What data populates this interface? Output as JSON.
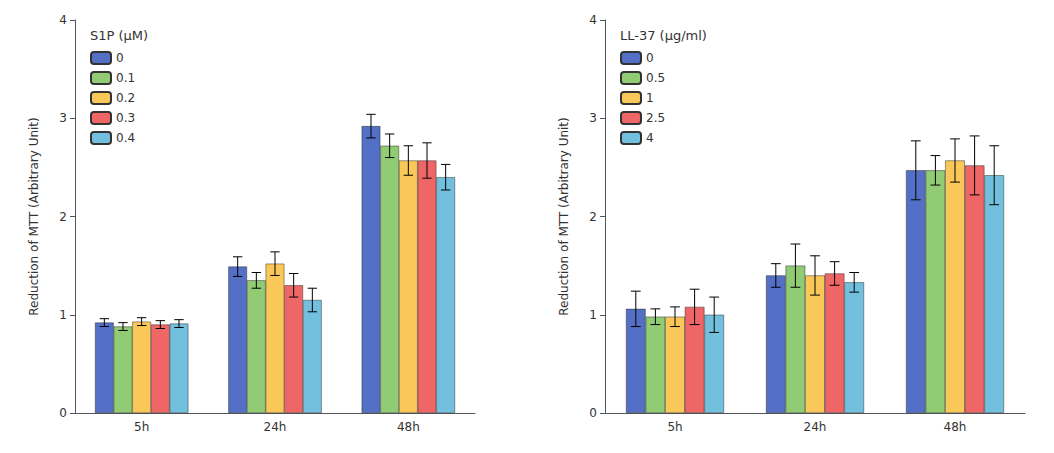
{
  "chart_data": [
    {
      "type": "bar",
      "title": "S1P (μM)",
      "ylabel": "Reduction of MTT (Arbitrary Unit)",
      "categories": [
        "5h",
        "24h",
        "48h"
      ],
      "series": [
        {
          "name": "0",
          "color": "#5470c6",
          "values": [
            0.92,
            1.49,
            2.92
          ],
          "errors": [
            0.04,
            0.1,
            0.12
          ]
        },
        {
          "name": "0.1",
          "color": "#91cc75",
          "values": [
            0.88,
            1.35,
            2.72
          ],
          "errors": [
            0.04,
            0.08,
            0.12
          ]
        },
        {
          "name": "0.2",
          "color": "#fac858",
          "values": [
            0.93,
            1.52,
            2.57
          ],
          "errors": [
            0.04,
            0.12,
            0.15
          ]
        },
        {
          "name": "0.3",
          "color": "#ee6666",
          "values": [
            0.9,
            1.3,
            2.57
          ],
          "errors": [
            0.04,
            0.12,
            0.18
          ]
        },
        {
          "name": "0.4",
          "color": "#73c0de",
          "values": [
            0.91,
            1.15,
            2.4
          ],
          "errors": [
            0.04,
            0.12,
            0.13
          ]
        }
      ],
      "ylim": [
        0,
        4
      ],
      "yticks": [
        0,
        1,
        2,
        3,
        4
      ],
      "grid": false,
      "legend": "upper left"
    },
    {
      "type": "bar",
      "title": "LL-37 (μg/ml)",
      "ylabel": "Reduction of MTT (Arbitrary Unit)",
      "categories": [
        "5h",
        "24h",
        "48h"
      ],
      "series": [
        {
          "name": "0",
          "color": "#5470c6",
          "values": [
            1.06,
            1.4,
            2.47
          ],
          "errors": [
            0.18,
            0.12,
            0.3
          ]
        },
        {
          "name": "0.5",
          "color": "#91cc75",
          "values": [
            0.98,
            1.5,
            2.47
          ],
          "errors": [
            0.08,
            0.22,
            0.15
          ]
        },
        {
          "name": "1",
          "color": "#fac858",
          "values": [
            0.98,
            1.4,
            2.57
          ],
          "errors": [
            0.1,
            0.2,
            0.22
          ]
        },
        {
          "name": "2.5",
          "color": "#ee6666",
          "values": [
            1.08,
            1.42,
            2.52
          ],
          "errors": [
            0.18,
            0.12,
            0.3
          ]
        },
        {
          "name": "4",
          "color": "#73c0de",
          "values": [
            1.0,
            1.33,
            2.42
          ],
          "errors": [
            0.18,
            0.1,
            0.3
          ]
        }
      ],
      "ylim": [
        0,
        4
      ],
      "yticks": [
        0,
        1,
        2,
        3,
        4
      ],
      "grid": false,
      "legend": "upper left"
    }
  ]
}
